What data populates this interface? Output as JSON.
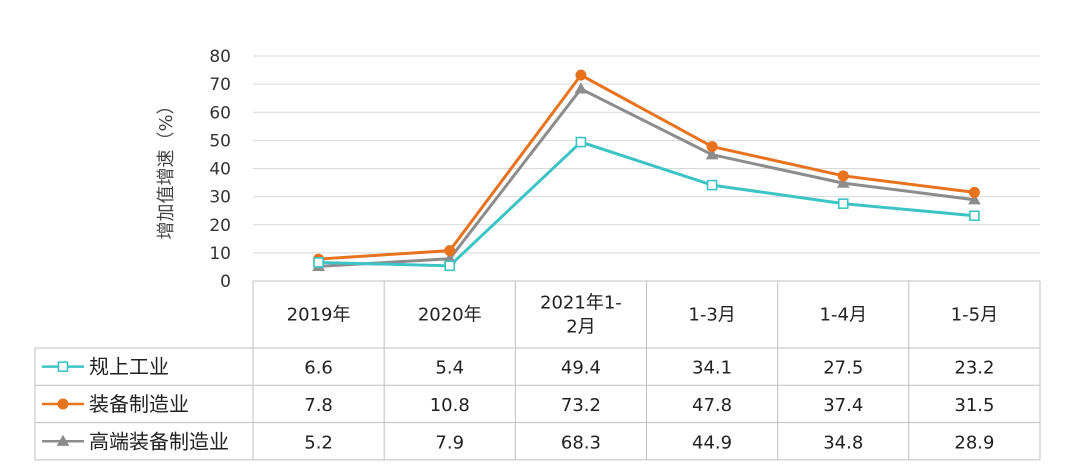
{
  "chart_data": {
    "type": "line",
    "ylabel": "增加值增速（%）",
    "ylim": [
      0,
      80
    ],
    "yticks": [
      0,
      10,
      20,
      30,
      40,
      50,
      60,
      70,
      80
    ],
    "grid": true,
    "legend": "data-table",
    "categories": [
      [
        "2019年"
      ],
      [
        "2020年"
      ],
      [
        "2021年1-",
        "2月"
      ],
      [
        "1-3月"
      ],
      [
        "1-4月"
      ],
      [
        "1-5月"
      ]
    ],
    "series": [
      {
        "name": "规上工业",
        "color": "#3cc4c4",
        "marker": "square-open",
        "values": [
          6.6,
          5.4,
          49.4,
          34.1,
          27.5,
          23.2
        ],
        "labels": [
          "6.6",
          "5.4",
          "49.4",
          "34.1",
          "27.5",
          "23.2"
        ]
      },
      {
        "name": "装备制造业",
        "color": "#e8731f",
        "marker": "circle",
        "values": [
          7.8,
          10.8,
          73.2,
          47.8,
          37.4,
          31.5
        ],
        "labels": [
          "7.8",
          "10.8",
          "73.2",
          "47.8",
          "37.4",
          "31.5"
        ]
      },
      {
        "name": "高端装备制造业",
        "color": "#8c8c8c",
        "marker": "triangle",
        "values": [
          5.2,
          7.9,
          68.3,
          44.9,
          34.8,
          28.9
        ],
        "labels": [
          "5.2",
          "7.9",
          "68.3",
          "44.9",
          "34.8",
          "28.9"
        ]
      }
    ]
  }
}
